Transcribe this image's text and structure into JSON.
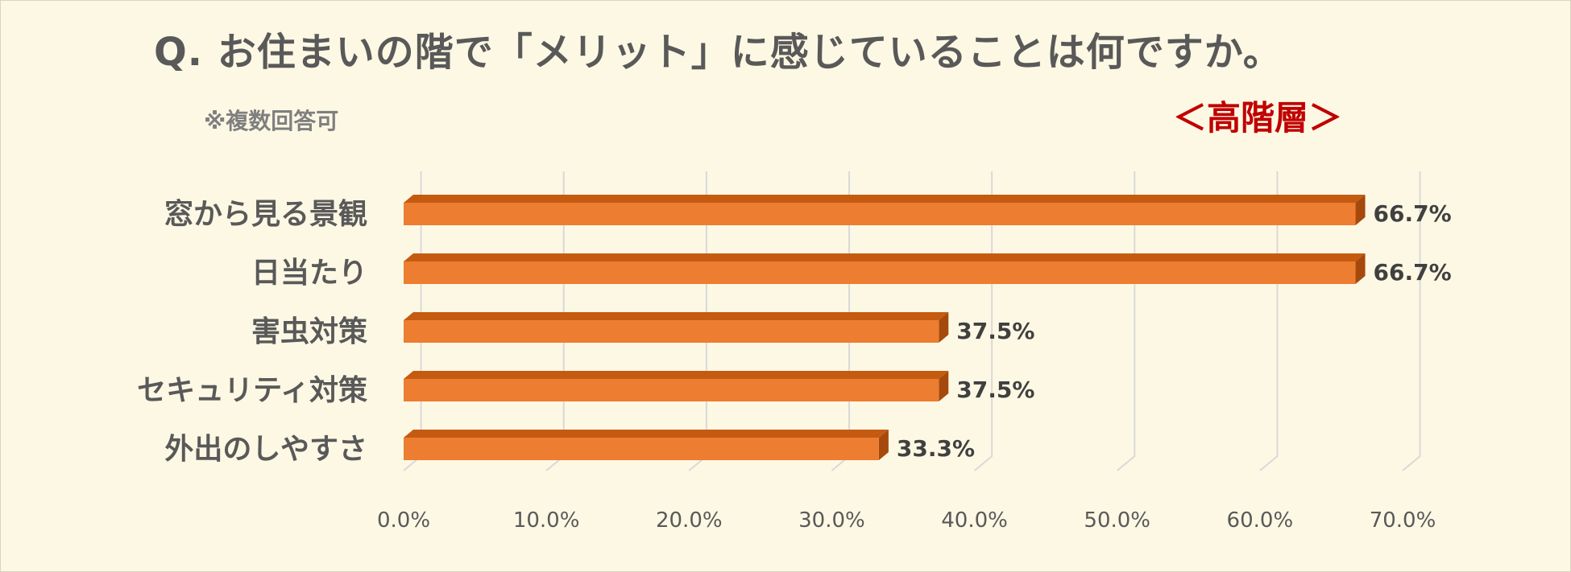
{
  "title": "Q. お住まいの階で「メリット」に感じていることは何ですか。",
  "note": "※複数回答可",
  "segment": "＜高階層＞",
  "colors": {
    "bar_front": "#ed7d31",
    "bar_top": "#c55a11",
    "bar_side": "#a5490d",
    "grid": "#d9d9d9",
    "title": "#595959",
    "segment": "#c00000"
  },
  "chart_data": {
    "type": "bar",
    "orientation": "horizontal",
    "style": "3d",
    "title": "Q. お住まいの階で「メリット」に感じていることは何ですか。",
    "categories": [
      "窓から見る景観",
      "日当たり",
      "害虫対策",
      "セキュリティ対策",
      "外出のしやすさ"
    ],
    "values": [
      66.7,
      66.7,
      37.5,
      37.5,
      33.3
    ],
    "value_labels": [
      "66.7%",
      "66.7%",
      "37.5%",
      "37.5%",
      "33.3%"
    ],
    "xlim": [
      0,
      70
    ],
    "ticks": [
      0,
      10,
      20,
      30,
      40,
      50,
      60,
      70
    ],
    "tick_labels": [
      "0.0%",
      "10.0%",
      "20.0%",
      "30.0%",
      "40.0%",
      "50.0%",
      "60.0%",
      "70.0%"
    ],
    "grid": true,
    "legend": "none"
  }
}
